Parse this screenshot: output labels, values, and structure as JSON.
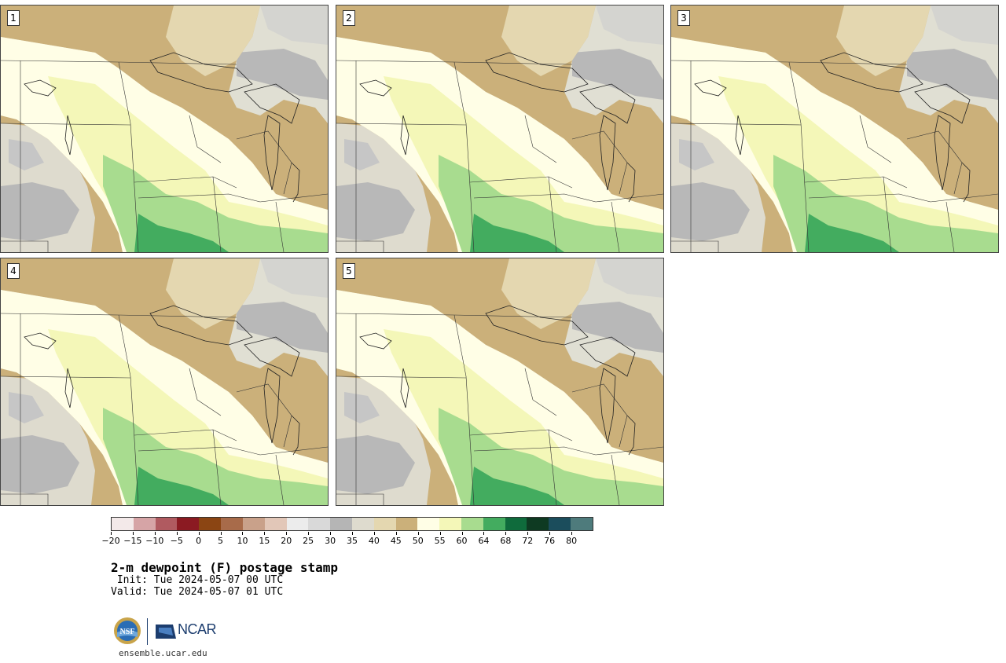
{
  "members": [
    {
      "label": "1"
    },
    {
      "label": "2"
    },
    {
      "label": "3"
    },
    {
      "label": "4"
    },
    {
      "label": "5"
    }
  ],
  "colorbar": {
    "colors": [
      "#f3e9e9",
      "#d6a4a6",
      "#b05a60",
      "#8b1a22",
      "#8b4513",
      "#a86b4a",
      "#c9a18a",
      "#e2c7b8",
      "#ececec",
      "#d9d9d9",
      "#b5b5b5",
      "#dedbce",
      "#e4d7b0",
      "#cbb07a",
      "#fffee6",
      "#f4f7b8",
      "#a8dc8f",
      "#43ac5f",
      "#0f6b3c",
      "#0e3a22",
      "#1b4d5c",
      "#4e7b7c"
    ],
    "tick_labels": [
      "−20",
      "−15",
      "−10",
      "−5",
      "0",
      "5",
      "10",
      "15",
      "20",
      "25",
      "30",
      "35",
      "40",
      "45",
      "50",
      "55",
      "60",
      "64",
      "68",
      "72",
      "76",
      "80"
    ]
  },
  "title": "2-m dewpoint (F) postage stamp",
  "init": " Init: Tue 2024-05-07 00 UTC",
  "valid": "Valid: Tue 2024-05-07 01 UTC",
  "logos": {
    "nsf": "NSF",
    "ncar": "NCAR"
  },
  "site": "ensemble.ucar.edu"
}
